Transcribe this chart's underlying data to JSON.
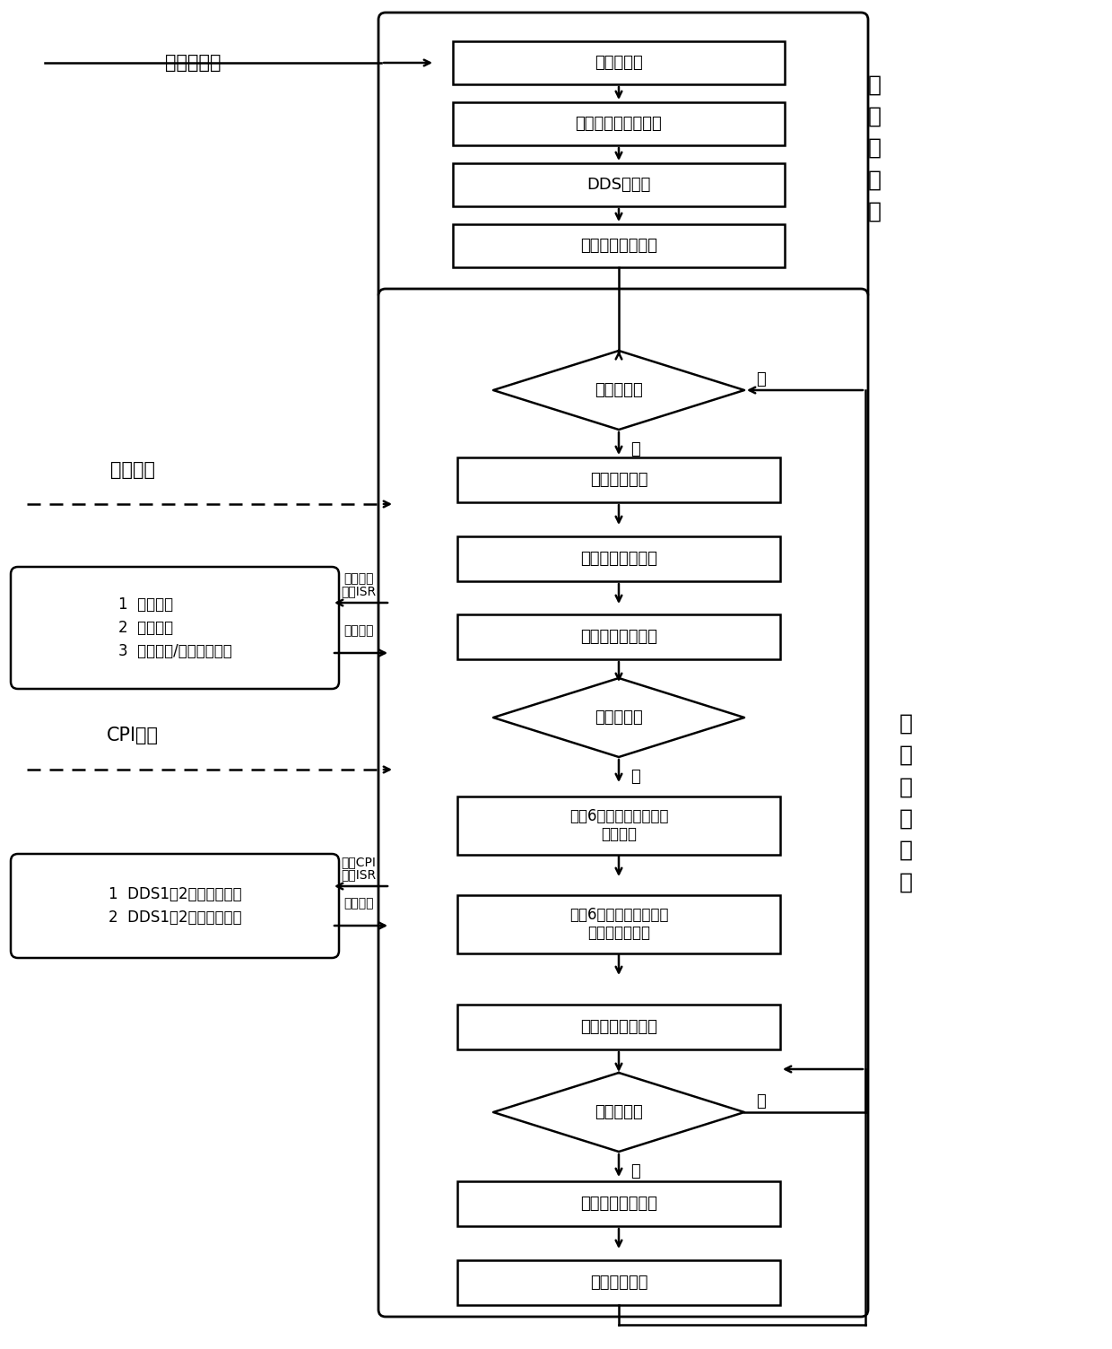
{
  "bg_color": "#ffffff",
  "fig_width": 12.4,
  "fig_height": 15.04,
  "init_module_label": "初\n始\n化\n模\n块",
  "loop_module_label": "循\n环\n执\n行\n模\n块",
  "init_boxes": [
    "变量初始化",
    "模拟目标参数初始化",
    "DDS初始化",
    "通信、中断初始化"
  ],
  "diamond1_label": "模拟开始？",
  "diamond1_yes": "是",
  "diamond1_no": "否",
  "diamond2_label": "是否交汇？",
  "diamond2_yes": "是",
  "diamond3_label": "模拟结束？",
  "diamond3_yes": "是",
  "diamond3_no": "否",
  "loop_box1": "模拟时间计算",
  "loop_box2": "雷达扫描方位计算",
  "loop_box3": "模拟目标位置计算",
  "loop_box4a": "同时6波束模拟目标回波",
  "loop_box4b": "幅度计算",
  "loop_box5a": "同时6波束模拟目标回波",
  "loop_box5b": "收发方向图调制",
  "loop_box6": "发送仪表控制命令",
  "loop_box7": "模拟目标参数还原",
  "loop_box8": "模拟时间清零",
  "left_label1": "串口中断",
  "left_box1_line1": "1  接收数据",
  "left_box1_line2": "2  数据解析",
  "left_box1_line3": "3  模拟起始/结束状态管理",
  "left_arrow1_in_a": "进入串口",
  "left_arrow1_in_b": "中断ISR",
  "left_arrow1_out": "中断返回",
  "left_label2": "CPI中断",
  "left_box2_line1": "1  DDS1、2控制参数计算",
  "left_box2_line2": "2  DDS1、2控制参数设置",
  "left_arrow2_in_a": "进入CPI",
  "left_arrow2_in_b": "中断ISR",
  "left_arrow2_out": "中断返回",
  "power_label": "上电或重启"
}
